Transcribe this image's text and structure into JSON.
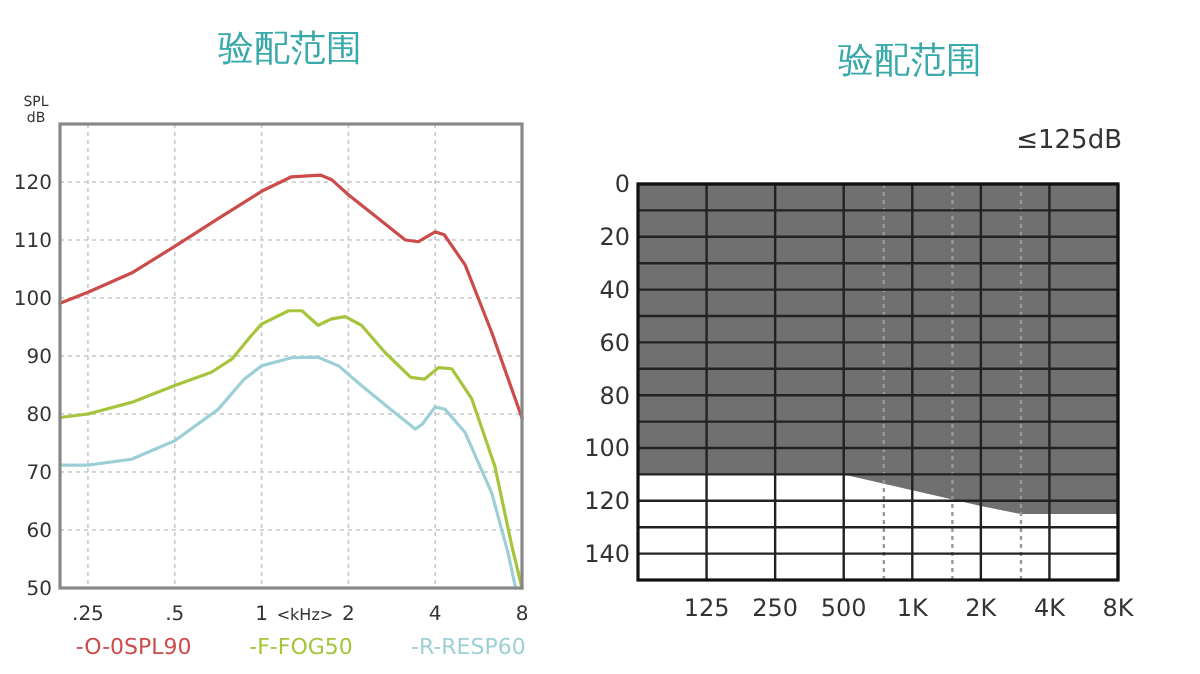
{
  "chart_data": [
    {
      "type": "line",
      "title": "验配范围",
      "xlabel": "<kHz>",
      "ylabel": "SPL\ndB",
      "log": "x",
      "grid": true,
      "legend": "bottom",
      "xlim": [
        0.2,
        8
      ],
      "xticks": [
        {
          "value": 0.25,
          "label": ".25"
        },
        {
          "value": 0.5,
          "label": ".5"
        },
        1,
        2,
        4,
        8
      ],
      "ylim": [
        50,
        130
      ],
      "yticks": [
        50,
        60,
        70,
        80,
        90,
        100,
        110,
        120
      ],
      "series": [
        {
          "name": "-O-0SPL90",
          "color": "#cc4b4b",
          "x": [
            0.2,
            0.25,
            0.354,
            0.5,
            0.707,
            1,
            1.27,
            1.6,
            1.75,
            2,
            2.54,
            3.15,
            3.5,
            4,
            4.3,
            5.08,
            6.28,
            8
          ],
          "values": [
            99.1,
            101,
            104.3,
            108.9,
            113.7,
            118.4,
            120.9,
            121.2,
            120.4,
            117.8,
            113.7,
            110,
            109.7,
            111.4,
            110.9,
            105.7,
            94.1,
            79.3
          ]
        },
        {
          "name": "-F-FOG50",
          "color": "#a6c43c",
          "x": [
            0.2,
            0.25,
            0.354,
            0.5,
            0.67,
            0.79,
            0.92,
            1,
            1.24,
            1.38,
            1.57,
            1.75,
            1.95,
            2.22,
            2.68,
            3.29,
            3.67,
            4.11,
            4.57,
            5.36,
            6.44,
            7.38,
            8
          ],
          "values": [
            79.4,
            80,
            82,
            84.9,
            87.2,
            89.5,
            93.5,
            95.5,
            97.8,
            97.8,
            95.3,
            96.4,
            96.8,
            95.3,
            90.6,
            86.3,
            86,
            88,
            87.8,
            82.6,
            71,
            57.2,
            50
          ]
        },
        {
          "name": "-R-RESP60",
          "color": "#9dd0d6",
          "x": [
            0.2,
            0.25,
            0.354,
            0.5,
            0.707,
            0.87,
            1,
            1.27,
            1.57,
            1.85,
            2.22,
            2.8,
            3.41,
            3.6,
            4,
            4.33,
            5.08,
            6.28,
            7.16,
            7.6
          ],
          "values": [
            71.2,
            71.2,
            72.2,
            75.4,
            80.8,
            86,
            88.3,
            89.7,
            89.8,
            88.3,
            84.9,
            80.8,
            77.4,
            78.2,
            81.2,
            80.8,
            76.8,
            66.4,
            56,
            50
          ]
        }
      ]
    },
    {
      "type": "area",
      "title": "验配范围",
      "annotations": [
        "≤125dB"
      ],
      "log": "x",
      "grid": true,
      "xlim": [
        62.5,
        8000
      ],
      "xticks": [
        125,
        250,
        500,
        {
          "value": 750,
          "label": null
        },
        {
          "value": 1000,
          "label": "1K"
        },
        {
          "value": 1500,
          "label": null
        },
        {
          "value": 2000,
          "label": "2K"
        },
        {
          "value": 3000,
          "label": null
        },
        {
          "value": 4000,
          "label": "4K"
        },
        {
          "value": 8000,
          "label": "8K"
        }
      ],
      "ylim": [
        150,
        0
      ],
      "yticks": [
        0,
        {
          "value": 10,
          "label": null
        },
        20,
        {
          "value": 30,
          "label": null
        },
        40,
        {
          "value": 50,
          "label": null
        },
        60,
        {
          "value": 70,
          "label": null
        },
        80,
        {
          "value": 90,
          "label": null
        },
        100,
        {
          "value": 110,
          "label": null
        },
        120,
        {
          "value": 130,
          "label": null
        },
        140
      ],
      "series": [
        {
          "color": "#707070",
          "x": [
            62.5,
            125,
            250,
            500,
            1000,
            2000,
            3000,
            4000,
            8000
          ],
          "values": [
            110,
            110,
            110,
            110,
            116,
            122,
            125,
            125,
            125
          ]
        }
      ]
    }
  ]
}
